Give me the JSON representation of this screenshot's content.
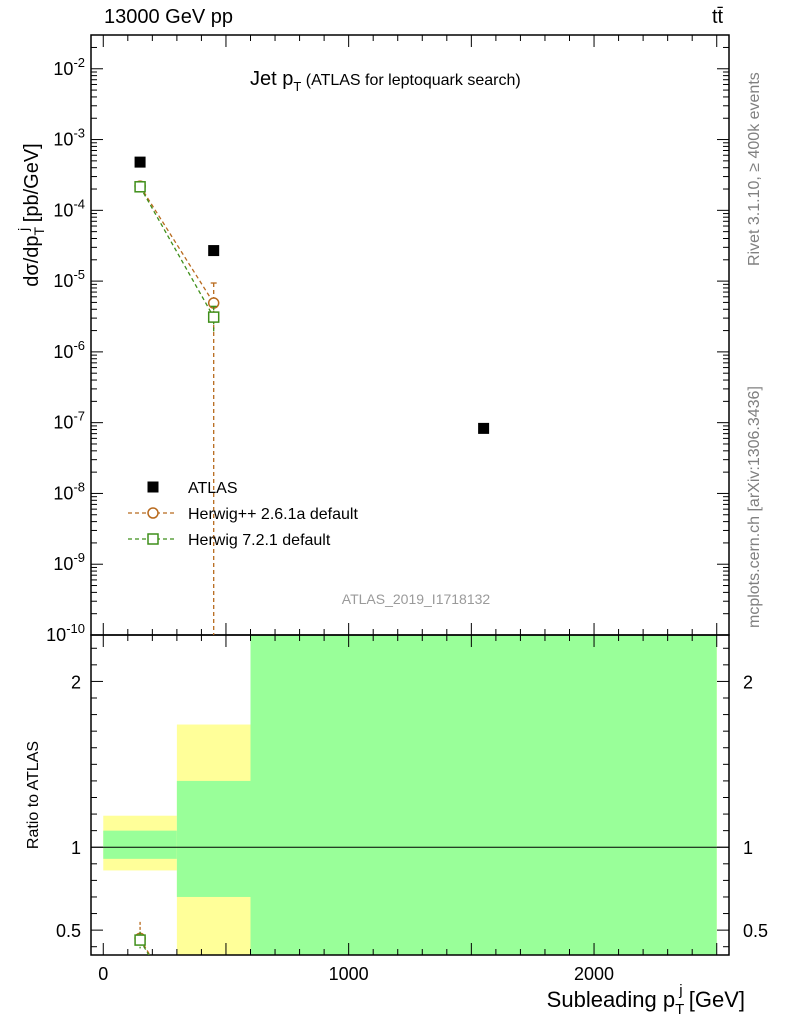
{
  "header": {
    "energy_label": "13000 GeV pp",
    "process_label": "tt̄"
  },
  "side_labels": {
    "rivet": "Rivet 3.1.10, ≥ 400k events",
    "mcplots": "mcplots.cern.ch [arXiv:1306.3436]"
  },
  "chart_data": [
    {
      "type": "scatter",
      "panel": "main",
      "title": "Jet p_T (ATLAS for leptoquark search)",
      "title_main": "Jet p",
      "title_sub": "T",
      "title_suffix": "(ATLAS for leptoquark search)",
      "ylabel": "dσ/dp_T^j [pb/GeV]",
      "y_scale": "log",
      "ylim": [
        1e-10,
        0.03
      ],
      "xlim": [
        -50,
        2550
      ],
      "ytick_exponents": [
        -10,
        -9,
        -8,
        -7,
        -6,
        -5,
        -4,
        -3,
        -2
      ],
      "analysis_id": "ATLAS_2019_I1718132",
      "legend_position": "lower-left",
      "series": [
        {
          "name": "ATLAS",
          "color": "#000000",
          "marker": "filled-square",
          "x": [
            150,
            450,
            1550
          ],
          "y": [
            0.00048,
            2.7e-05,
            8.3e-08
          ]
        },
        {
          "name": "Herwig++ 2.6.1a default",
          "color": "#b86a1e",
          "marker": "open-circle",
          "line": "dashed",
          "x": [
            150,
            450
          ],
          "y": [
            0.00022,
            4.9e-06
          ],
          "err_low": [
            2e-05,
            4.9e-06
          ],
          "err_high": [
            2e-05,
            4.5e-06
          ]
        },
        {
          "name": "Herwig 7.2.1 default",
          "color": "#3f8f1a",
          "marker": "open-square",
          "line": "dashed",
          "x": [
            150,
            450
          ],
          "y": [
            0.000215,
            3.1e-06
          ],
          "err_low": [
            2e-05,
            1.2e-06
          ],
          "err_high": [
            2e-05,
            1.3e-06
          ]
        }
      ]
    },
    {
      "type": "scatter",
      "panel": "ratio",
      "ylabel": "Ratio to ATLAS",
      "ylim": [
        0.35,
        2.28
      ],
      "yticks": [
        0.5,
        1,
        2
      ],
      "ytick_labels": [
        "0.5",
        "1",
        "2"
      ],
      "xlim": [
        -50,
        2550
      ],
      "xticks": [
        0,
        1000,
        2000
      ],
      "xtick_labels": [
        "0",
        "1000",
        "2000"
      ],
      "xlabel": "Subleading p_T^j [GeV]",
      "xlabel_main": "Subleading p",
      "xlabel_suffix": "[GeV]",
      "reference_line": 1,
      "bands": [
        {
          "x0": 0,
          "x1": 300,
          "total": [
            0.86,
            1.19
          ],
          "stat": [
            0.93,
            1.1
          ]
        },
        {
          "x0": 300,
          "x1": 600,
          "total": [
            0.22,
            1.74
          ],
          "stat": [
            0.7,
            1.4
          ]
        },
        {
          "x0": 600,
          "x1": 2500,
          "total": [
            0.0,
            3.0
          ],
          "stat": [
            0.0,
            3.0
          ]
        }
      ],
      "band_colors": {
        "total": "#ffff99",
        "stat": "#99ff99"
      },
      "series": [
        {
          "name": "Herwig++ 2.6.1a default",
          "color": "#b86a1e",
          "marker": "open-circle",
          "x": [
            150
          ],
          "y": [
            0.45
          ],
          "err_low": [
            0.05
          ],
          "err_high": [
            0.1
          ]
        },
        {
          "name": "Herwig 7.2.1 default",
          "color": "#3f8f1a",
          "marker": "open-square",
          "x": [
            150
          ],
          "y": [
            0.44
          ],
          "err_low": [
            0.05
          ],
          "err_high": [
            0.05
          ]
        }
      ]
    }
  ]
}
